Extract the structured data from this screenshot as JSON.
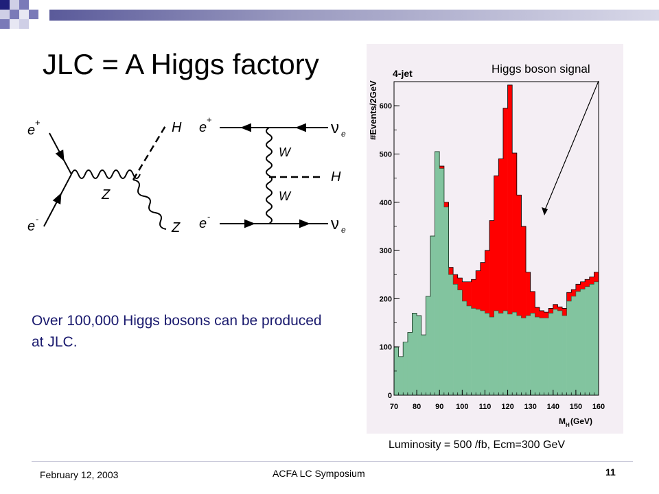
{
  "slide": {
    "title": "JLC = A Higgs factory",
    "body": "Over 100,000 Higgs bosons can be produced at JLC.",
    "luminosity_note": "Luminosity = 500 /fb, Ecm=300 GeV"
  },
  "footer": {
    "date": "February 12, 2003",
    "center": "ACFA LC Symposium",
    "page": "11"
  },
  "diagrams": {
    "zh": {
      "e_plus": "e",
      "e_minus": "e",
      "z_mid": "Z",
      "h": "H",
      "z_out": "Z",
      "sup_plus": "+",
      "sup_minus": "-"
    },
    "ww": {
      "e_plus": "e",
      "e_minus": "e",
      "nu_top": "ν",
      "nu_bot": "ν",
      "sub": "e",
      "w1": "W",
      "w2": "W",
      "h": "H",
      "sup_plus": "+",
      "sup_minus": "-"
    }
  },
  "colors": {
    "background_fill": "#82c49f",
    "signal_fill": "#ff0000",
    "chart_bg": "#f4eef4",
    "title_text": "#000000",
    "body_text": "#1a1a6e"
  },
  "chart_data": {
    "type": "bar",
    "stacked": true,
    "title": "4-jet",
    "xlabel": "M",
    "xlabel_sub": "H",
    "xlabel_unit": "(GeV)",
    "ylabel": "#Events/2GeV",
    "xlim": [
      70,
      160
    ],
    "ylim": [
      0,
      650
    ],
    "x_ticks": [
      "70",
      "80",
      "90",
      "100",
      "110",
      "120",
      "130",
      "140",
      "150",
      "160"
    ],
    "y_ticks": [
      "0",
      "100",
      "200",
      "300",
      "400",
      "500",
      "600"
    ],
    "bin_width": 2,
    "bin_starts": [
      70,
      72,
      74,
      76,
      78,
      80,
      82,
      84,
      86,
      88,
      90,
      92,
      94,
      96,
      98,
      100,
      102,
      104,
      106,
      108,
      110,
      112,
      114,
      116,
      118,
      120,
      122,
      124,
      126,
      128,
      130,
      132,
      134,
      136,
      138,
      140,
      142,
      144,
      146,
      148,
      150,
      152,
      154,
      156,
      158
    ],
    "annotation": "Higgs boson  signal",
    "series": [
      {
        "values": [
          100,
          80,
          110,
          130,
          170,
          165,
          125,
          205,
          330,
          505,
          470,
          390,
          250,
          230,
          218,
          195,
          185,
          180,
          178,
          175,
          170,
          162,
          175,
          170,
          175,
          168,
          172,
          165,
          160,
          165,
          170,
          162,
          160,
          160,
          170,
          178,
          175,
          165,
          195,
          205,
          215,
          220,
          225,
          230,
          235
        ]
      },
      {
        "values": [
          0,
          0,
          0,
          0,
          0,
          0,
          0,
          0,
          0,
          0,
          5,
          10,
          15,
          20,
          25,
          40,
          50,
          60,
          80,
          100,
          130,
          200,
          280,
          320,
          420,
          475,
          330,
          250,
          190,
          90,
          45,
          20,
          15,
          12,
          10,
          10,
          8,
          15,
          18,
          14,
          15,
          15,
          15,
          15,
          20
        ]
      }
    ]
  }
}
